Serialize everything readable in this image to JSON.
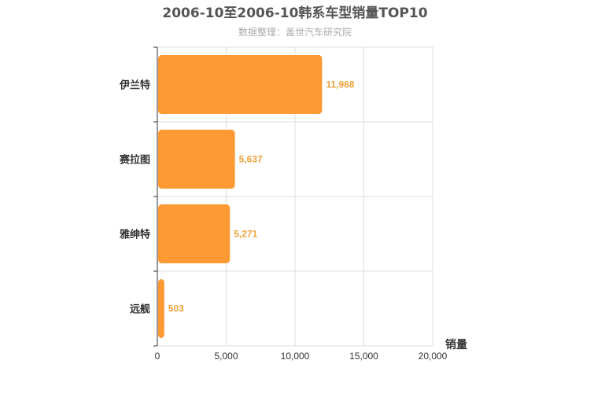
{
  "chart_data": {
    "type": "bar",
    "orientation": "horizontal",
    "title": "2006-10至2006-10韩系车型销量TOP10",
    "subtitle": "数据整理：盖世汽车研究院",
    "categories": [
      "伊兰特",
      "赛拉图",
      "雅绅特",
      "远舰"
    ],
    "values": [
      11968,
      5637,
      5271,
      503
    ],
    "value_labels": [
      "11,968",
      "5,637",
      "5,271",
      "503"
    ],
    "xlabel": "销量",
    "ylabel": "",
    "xlim": [
      0,
      20000
    ],
    "x_ticks": [
      0,
      5000,
      10000,
      15000,
      20000
    ],
    "x_tick_labels": [
      "0",
      "5,000",
      "10,000",
      "15,000",
      "20,000"
    ],
    "grid": true,
    "colors": {
      "bar": "#ff9933",
      "bar_stroke": "#ffffff",
      "value_label": "#f0a23a",
      "grid": "#dddddd",
      "axis": "#333333"
    }
  }
}
